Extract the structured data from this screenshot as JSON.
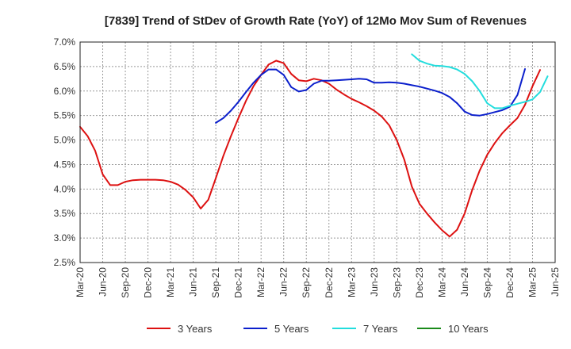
{
  "chart_data": {
    "type": "line",
    "title": "[7839]  Trend of StDev of Growth Rate (YoY) of 12Mo Mov Sum of Revenues",
    "xlabel": "",
    "ylabel": "",
    "ylim": [
      2.5,
      7.0
    ],
    "y_ticks": [
      2.5,
      3.0,
      3.5,
      4.0,
      4.5,
      5.0,
      5.5,
      6.0,
      6.5,
      7.0
    ],
    "y_tick_labels": [
      "2.5%",
      "3.0%",
      "3.5%",
      "4.0%",
      "4.5%",
      "5.0%",
      "5.5%",
      "6.0%",
      "6.5%",
      "7.0%"
    ],
    "x_tick_labels": [
      "Mar-20",
      "Jun-20",
      "Sep-20",
      "Dec-20",
      "Mar-21",
      "Jun-21",
      "Sep-21",
      "Dec-21",
      "Mar-22",
      "Jun-22",
      "Sep-22",
      "Dec-22",
      "Mar-23",
      "Jun-23",
      "Sep-23",
      "Dec-23",
      "Mar-24",
      "Jun-24",
      "Sep-24",
      "Dec-24",
      "Mar-25",
      "Jun-25"
    ],
    "grid": true,
    "legend_position": "bottom",
    "series": [
      {
        "name": "3 Years",
        "color": "#dd1111",
        "start_index": 0,
        "values": [
          5.27,
          5.08,
          4.78,
          4.3,
          4.08,
          4.08,
          4.15,
          4.18,
          4.19,
          4.19,
          4.19,
          4.18,
          4.15,
          4.09,
          3.98,
          3.83,
          3.6,
          3.78,
          4.22,
          4.68,
          5.08,
          5.45,
          5.8,
          6.1,
          6.33,
          6.54,
          6.62,
          6.57,
          6.35,
          6.22,
          6.2,
          6.25,
          6.22,
          6.15,
          6.03,
          5.93,
          5.84,
          5.77,
          5.69,
          5.6,
          5.48,
          5.3,
          5.0,
          4.6,
          4.05,
          3.7,
          3.5,
          3.32,
          3.16,
          3.03,
          3.17,
          3.5,
          3.98,
          4.38,
          4.7,
          4.94,
          5.14,
          5.3,
          5.45,
          5.72,
          6.1,
          6.43
        ]
      },
      {
        "name": "5 Years",
        "color": "#0b1fcc",
        "start_index": 18,
        "values": [
          5.35,
          5.45,
          5.6,
          5.78,
          5.98,
          6.17,
          6.33,
          6.44,
          6.44,
          6.33,
          6.08,
          5.99,
          6.02,
          6.15,
          6.21,
          6.21,
          6.22,
          6.23,
          6.24,
          6.25,
          6.24,
          6.17,
          6.17,
          6.18,
          6.17,
          6.15,
          6.12,
          6.09,
          6.05,
          6.01,
          5.96,
          5.88,
          5.75,
          5.58,
          5.51,
          5.5,
          5.53,
          5.57,
          5.61,
          5.68,
          5.92,
          6.45
        ]
      },
      {
        "name": "7 Years",
        "color": "#22dddd",
        "start_index": 44,
        "values": [
          6.75,
          6.62,
          6.56,
          6.52,
          6.51,
          6.49,
          6.44,
          6.35,
          6.2,
          6.0,
          5.75,
          5.65,
          5.65,
          5.7,
          5.74,
          5.78,
          5.83,
          5.98,
          6.3
        ]
      },
      {
        "name": "10 Years",
        "color": "#1a8a1a",
        "start_index": 0,
        "values": []
      }
    ]
  }
}
